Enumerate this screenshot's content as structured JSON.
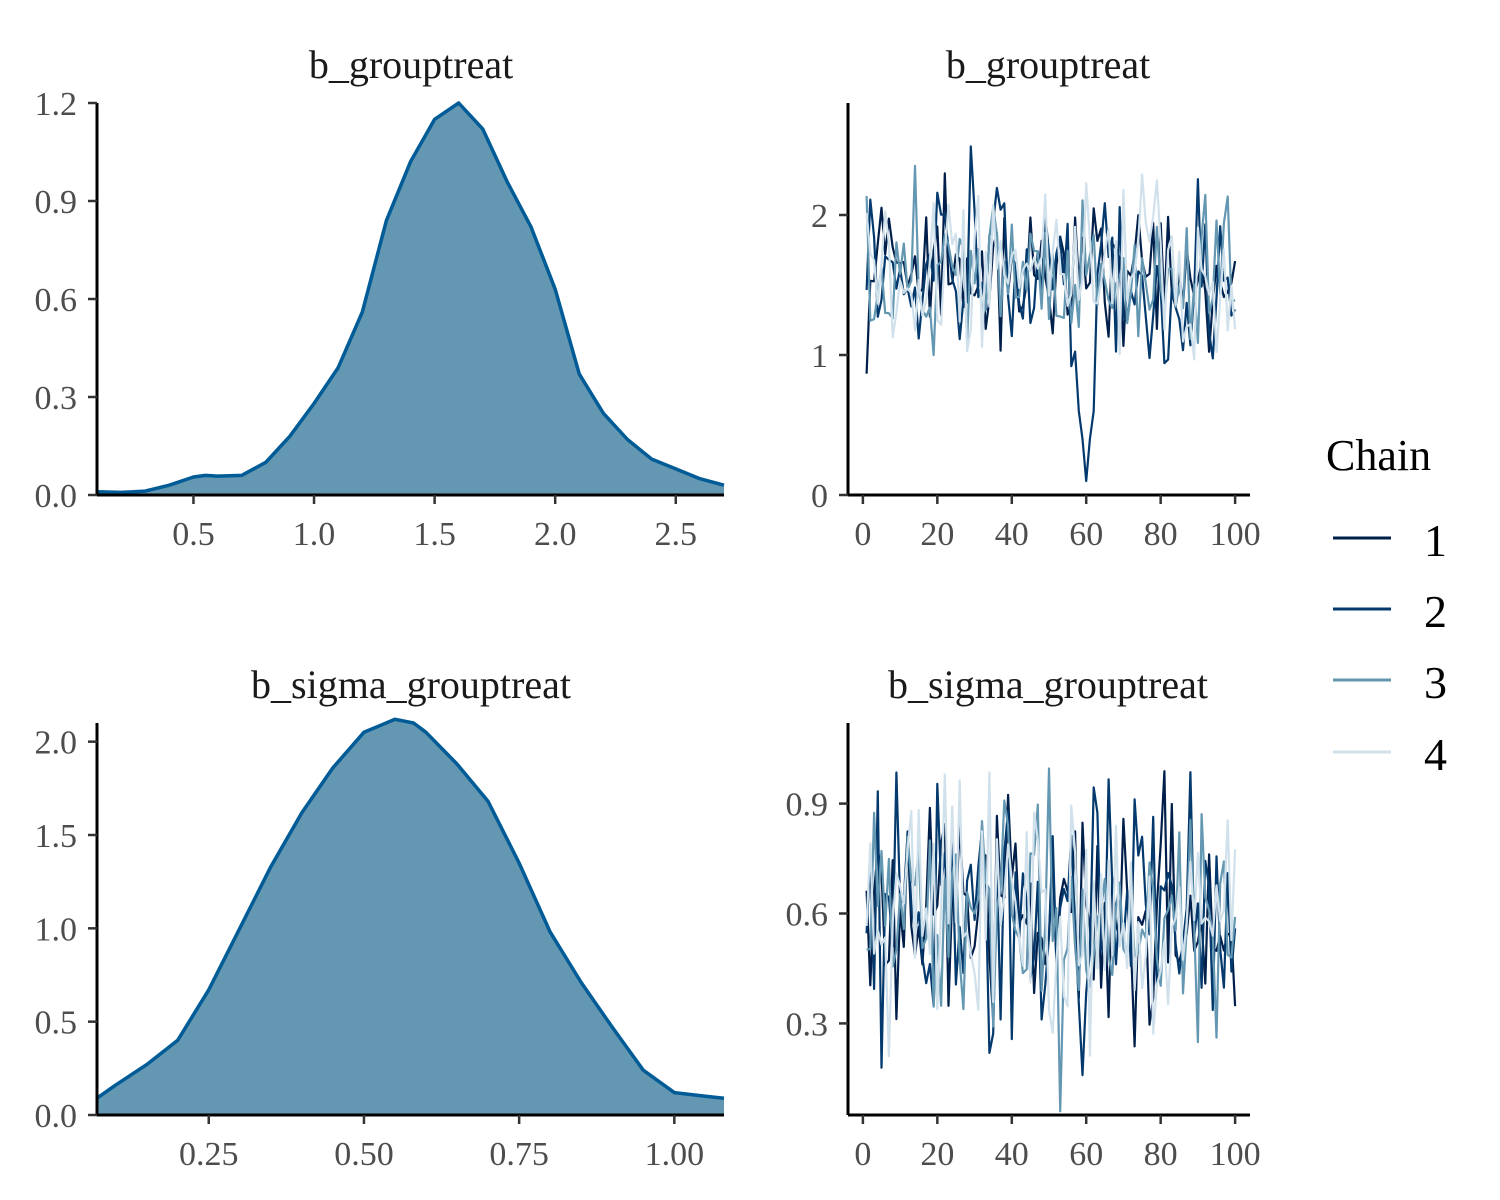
{
  "legend": {
    "title": "Chain",
    "items": [
      {
        "label": "1",
        "color": "#011f4b"
      },
      {
        "label": "2",
        "color": "#03396c"
      },
      {
        "label": "3",
        "color": "#6497b1"
      },
      {
        "label": "4",
        "color": "#d1e1ec"
      }
    ]
  },
  "colors": {
    "density_fill": "#6497b1",
    "density_line": "#005b96"
  },
  "chart_data": [
    {
      "type": "area",
      "title": "b_grouptreat",
      "xlim": [
        0.1,
        2.7
      ],
      "ylim": [
        0,
        1.2
      ],
      "xticks": [
        0.5,
        1.0,
        1.5,
        2.0,
        2.5
      ],
      "xtick_labels": [
        "0.5",
        "1.0",
        "1.5",
        "2.0",
        "2.5"
      ],
      "yticks": [
        0,
        0.3,
        0.6,
        0.9,
        1.2
      ],
      "ytick_labels": [
        "0.0",
        "0.3",
        "0.6",
        "0.9",
        "1.2"
      ],
      "x": [
        0.1,
        0.2,
        0.3,
        0.4,
        0.5,
        0.55,
        0.6,
        0.7,
        0.8,
        0.9,
        1.0,
        1.1,
        1.2,
        1.3,
        1.4,
        1.5,
        1.6,
        1.7,
        1.8,
        1.9,
        2.0,
        2.1,
        2.2,
        2.3,
        2.4,
        2.5,
        2.6,
        2.7
      ],
      "y": [
        0.01,
        0.008,
        0.012,
        0.03,
        0.055,
        0.06,
        0.058,
        0.06,
        0.1,
        0.18,
        0.28,
        0.39,
        0.56,
        0.84,
        1.02,
        1.15,
        1.2,
        1.12,
        0.96,
        0.82,
        0.63,
        0.37,
        0.25,
        0.17,
        0.11,
        0.08,
        0.05,
        0.03
      ]
    },
    {
      "type": "line",
      "title": "b_grouptreat",
      "xlim": [
        -4,
        104
      ],
      "ylim": [
        0,
        2.8
      ],
      "xticks": [
        0,
        20,
        40,
        60,
        80,
        100
      ],
      "xtick_labels": [
        "0",
        "20",
        "40",
        "60",
        "80",
        "100"
      ],
      "yticks": [
        0,
        1,
        2
      ],
      "ytick_labels": [
        "0",
        "1",
        "2"
      ],
      "trace": {
        "iterations": 100,
        "center": 1.6,
        "spread": 0.3,
        "min": 0.1,
        "max": 2.7,
        "notable": {
          "series": "2",
          "iteration": 60,
          "value": 0.1
        }
      }
    },
    {
      "type": "area",
      "title": "b_sigma_grouptreat",
      "xlim": [
        0.07,
        1.08
      ],
      "ylim": [
        0,
        2.1
      ],
      "xticks": [
        0.25,
        0.5,
        0.75,
        1.0
      ],
      "xtick_labels": [
        "0.25",
        "0.50",
        "0.75",
        "1.00"
      ],
      "yticks": [
        0,
        0.5,
        1.0,
        1.5,
        2.0
      ],
      "ytick_labels": [
        "0.0",
        "0.5",
        "1.0",
        "1.5",
        "2.0"
      ],
      "x": [
        0.07,
        0.1,
        0.15,
        0.2,
        0.25,
        0.3,
        0.35,
        0.4,
        0.45,
        0.5,
        0.55,
        0.58,
        0.6,
        0.65,
        0.7,
        0.75,
        0.8,
        0.85,
        0.9,
        0.95,
        1.0,
        1.05,
        1.08
      ],
      "y": [
        0.09,
        0.16,
        0.27,
        0.4,
        0.67,
        1.0,
        1.33,
        1.62,
        1.86,
        2.05,
        2.12,
        2.1,
        2.05,
        1.88,
        1.68,
        1.35,
        0.98,
        0.71,
        0.47,
        0.24,
        0.12,
        0.1,
        0.09
      ]
    },
    {
      "type": "line",
      "title": "b_sigma_grouptreat",
      "xlim": [
        -4,
        104
      ],
      "ylim": [
        0.05,
        1.12
      ],
      "xticks": [
        0,
        20,
        40,
        60,
        80,
        100
      ],
      "xtick_labels": [
        "0",
        "20",
        "40",
        "60",
        "80",
        "100"
      ],
      "yticks": [
        0.3,
        0.6,
        0.9
      ],
      "ytick_labels": [
        "0.3",
        "0.6",
        "0.9"
      ],
      "trace": {
        "iterations": 100,
        "center": 0.58,
        "spread": 0.17,
        "min": 0.06,
        "max": 1.08
      }
    }
  ]
}
